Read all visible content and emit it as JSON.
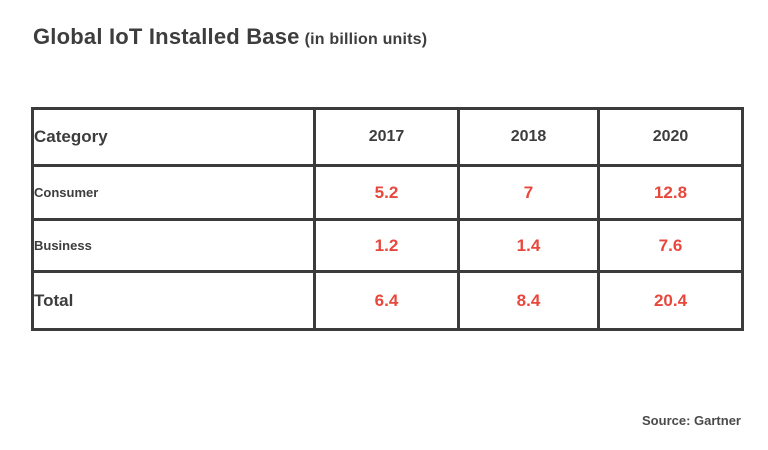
{
  "title": {
    "main": "Global IoT Installed Base",
    "subtitle": "(in billion units)"
  },
  "source": "Source: Gartner",
  "colors": {
    "text": "#3d3d3d",
    "value": "#e8473c",
    "border": "#3b3b3b",
    "background": "#ffffff"
  },
  "chart_data": {
    "type": "table",
    "title": "Global IoT Installed Base (in billion units)",
    "unit": "billion units",
    "columns": [
      "Category",
      "2017",
      "2018",
      "2020"
    ],
    "rows": [
      {
        "category": "Consumer",
        "values": [
          "5.2",
          "7",
          "12.8"
        ]
      },
      {
        "category": "Business",
        "values": [
          "1.2",
          "1.4",
          "7.6"
        ]
      },
      {
        "category": "Total",
        "values": [
          "6.4",
          "8.4",
          "20.4"
        ]
      }
    ],
    "source": "Gartner"
  }
}
